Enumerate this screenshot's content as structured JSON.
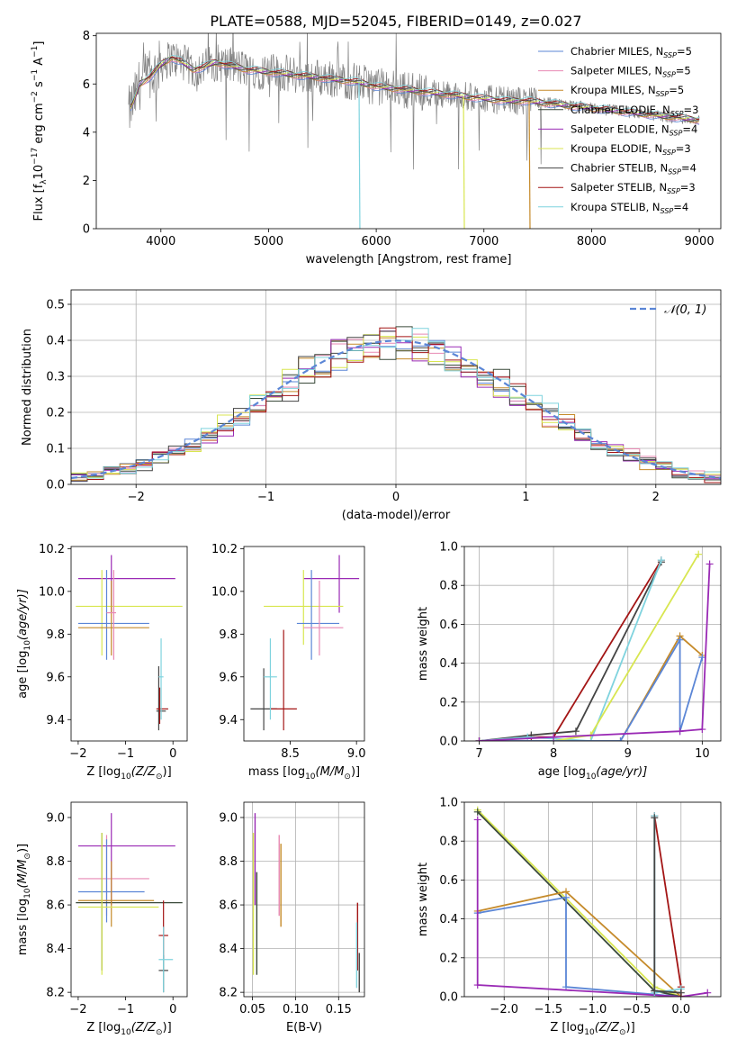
{
  "title": "PLATE=0588, MJD=52045, FIBERID=0149, z=0.027",
  "legend_models": [
    {
      "label": "Chabrier MILES, N",
      "n": "=5",
      "color": "#5b86d6"
    },
    {
      "label": "Salpeter MILES, N",
      "n": "=5",
      "color": "#e889b4"
    },
    {
      "label": "Kroupa MILES, N",
      "n": "=5",
      "color": "#c58a2a"
    },
    {
      "label": "Chabrier ELODIE, N",
      "n": "=3",
      "color": "#3a4a3a"
    },
    {
      "label": "Salpeter ELODIE, N",
      "n": "=4",
      "color": "#9a2ab5"
    },
    {
      "label": "Kroupa ELODIE, N",
      "n": "=3",
      "color": "#d8e650"
    },
    {
      "label": "Chabrier STELIB, N",
      "n": "=4",
      "color": "#444444"
    },
    {
      "label": "Salpeter STELIB, N",
      "n": "=3",
      "color": "#a31515"
    },
    {
      "label": "Kroupa STELIB, N",
      "n": "=4",
      "color": "#7fd3de"
    }
  ],
  "legend_sub": "SSP",
  "chart_data": [
    {
      "id": "spectrum",
      "type": "line",
      "xlabel": "wavelength [Angstrom, rest frame]",
      "ylabel": "Flux [f",
      "ylabel_sub": "λ",
      "ylabel_rest": "10",
      "ylabel_exp1": "−17",
      "ylabel_unit": " erg cm",
      "ylabel_exp2": "−2",
      "ylabel_s": " s",
      "ylabel_exp3": "−1",
      "ylabel_A": " A",
      "ylabel_exp4": "−1",
      "ylabel_end": "]",
      "xlim": [
        3400,
        9200
      ],
      "ylim": [
        0,
        8.1
      ],
      "xticks": [
        4000,
        5000,
        6000,
        7000,
        8000,
        9000
      ],
      "yticks": [
        0,
        2,
        4,
        6,
        8
      ],
      "continuum": {
        "x": [
          3700,
          3750,
          3800,
          3900,
          4000,
          4100,
          4200,
          4300,
          4400,
          4500,
          4600,
          4800,
          5000,
          5200,
          5400,
          5600,
          5800,
          6000,
          6200,
          6400,
          6600,
          6800,
          7000,
          7200,
          7400,
          7600,
          7800,
          8000,
          8200,
          8400,
          8600,
          8800,
          9000
        ],
        "y": [
          4.8,
          5.3,
          6.0,
          6.3,
          6.8,
          7.1,
          6.9,
          6.6,
          6.7,
          6.9,
          6.8,
          6.6,
          6.5,
          6.4,
          6.3,
          6.2,
          6.1,
          5.9,
          5.8,
          5.7,
          5.6,
          5.5,
          5.4,
          5.3,
          5.3,
          5.2,
          5.1,
          5.0,
          4.9,
          4.8,
          4.7,
          4.6,
          4.5
        ]
      },
      "cutoffs": [
        {
          "x": 5840,
          "color": "#7fd3de"
        },
        {
          "x": 6810,
          "color": "#d8e650"
        },
        {
          "x": 7420,
          "color": "#c58a2a"
        }
      ]
    },
    {
      "id": "residuals",
      "type": "line",
      "xlabel": "(data-model)/error",
      "ylabel": "Normed distribution",
      "xlim": [
        -2.5,
        2.5
      ],
      "ylim": [
        0,
        0.54
      ],
      "xticks": [
        -2,
        -1,
        0,
        1,
        2
      ],
      "yticks": [
        0.0,
        0.1,
        0.2,
        0.3,
        0.4,
        0.5
      ],
      "legend": "𝒩(0, 1)",
      "grid": true
    },
    {
      "id": "age-vs-Z",
      "type": "scatter",
      "xlabel": "Z [log",
      "xlabel_sub": "10",
      "xlabel_rest": "(Z/Z",
      "xlabel_sun": "⊙",
      "xlabel_end": ")]",
      "ylabel": "age  [log",
      "ylabel_sub": "10",
      "ylabel_rest": "(age/yr)]",
      "xlim": [
        -2.15,
        0.3
      ],
      "ylim": [
        9.3,
        10.21
      ],
      "xticks": [
        -2,
        -1,
        0
      ],
      "yticks": [
        9.4,
        9.6,
        9.8,
        10.0,
        10.2
      ],
      "points": [
        {
          "x": -1.3,
          "y": 10.06,
          "xe": [
            -2.0,
            0.05
          ],
          "ye": [
            9.9,
            10.17
          ],
          "c": "#9a2ab5"
        },
        {
          "x": -1.5,
          "y": 9.93,
          "xe": [
            -2.05,
            0.2
          ],
          "ye": [
            9.7,
            10.1
          ],
          "c": "#d8e650"
        },
        {
          "x": -1.4,
          "y": 9.85,
          "xe": [
            -2.0,
            -0.5
          ],
          "ye": [
            9.68,
            10.1
          ],
          "c": "#5b86d6"
        },
        {
          "x": -1.3,
          "y": 9.83,
          "xe": [
            -2.0,
            -0.5
          ],
          "ye": [
            9.7,
            10.05
          ],
          "c": "#c58a2a"
        },
        {
          "x": -1.25,
          "y": 9.9,
          "xe": [
            -1.4,
            -1.2
          ],
          "ye": [
            9.68,
            10.1
          ],
          "c": "#e889b4"
        },
        {
          "x": -0.3,
          "y": 9.44,
          "xe": [
            -0.35,
            -0.15
          ],
          "ye": [
            9.35,
            9.65
          ],
          "c": "#444444"
        },
        {
          "x": -0.28,
          "y": 9.45,
          "xe": [
            -0.35,
            -0.1
          ],
          "ye": [
            9.38,
            9.55
          ],
          "c": "#a31515"
        },
        {
          "x": -0.25,
          "y": 9.6,
          "xe": [
            -0.3,
            -0.2
          ],
          "ye": [
            9.4,
            9.78
          ],
          "c": "#7fd3de"
        }
      ]
    },
    {
      "id": "age-vs-mass",
      "type": "scatter",
      "xlabel": "mass [log",
      "xlabel_sub": "10",
      "xlabel_rest": "(M/M",
      "xlabel_sun": "⊙",
      "xlabel_end": ")]",
      "xlim": [
        8.15,
        9.06
      ],
      "ylim": [
        9.3,
        10.21
      ],
      "xticks": [
        8.5,
        9.0
      ],
      "yticks": [
        9.4,
        9.6,
        9.8,
        10.0,
        10.2
      ],
      "points": [
        {
          "x": 8.87,
          "y": 10.06,
          "xe": [
            8.6,
            9.02
          ],
          "ye": [
            9.9,
            10.17
          ],
          "c": "#9a2ab5"
        },
        {
          "x": 8.6,
          "y": 9.93,
          "xe": [
            8.3,
            8.9
          ],
          "ye": [
            9.75,
            10.1
          ],
          "c": "#d8e650"
        },
        {
          "x": 8.66,
          "y": 9.85,
          "xe": [
            8.55,
            8.87
          ],
          "ye": [
            9.68,
            10.1
          ],
          "c": "#5b86d6"
        },
        {
          "x": 8.72,
          "y": 9.83,
          "xe": [
            8.6,
            8.9
          ],
          "ye": [
            9.7,
            10.05
          ],
          "c": "#e889b4"
        },
        {
          "x": 8.3,
          "y": 9.45,
          "xe": [
            8.2,
            8.4
          ],
          "ye": [
            9.35,
            9.64
          ],
          "c": "#444444"
        },
        {
          "x": 8.45,
          "y": 9.45,
          "xe": [
            8.35,
            8.55
          ],
          "ye": [
            9.35,
            9.82
          ],
          "c": "#a31515"
        },
        {
          "x": 8.35,
          "y": 9.6,
          "xe": [
            8.3,
            8.4
          ],
          "ye": [
            9.4,
            9.78
          ],
          "c": "#7fd3de"
        }
      ]
    },
    {
      "id": "weight-vs-age",
      "type": "line",
      "xlabel": "age  [log",
      "xlabel_sub": "10",
      "xlabel_rest": "(age/yr)]",
      "ylabel": "mass weight",
      "xlim": [
        6.8,
        10.25
      ],
      "ylim": [
        0,
        1.0
      ],
      "xticks": [
        7,
        8,
        9,
        10
      ],
      "yticks": [
        0.0,
        0.2,
        0.4,
        0.6,
        0.8,
        1.0
      ],
      "grid": true,
      "series": [
        {
          "c": "#a31515",
          "x": [
            7.0,
            7.7,
            8.0,
            9.45
          ],
          "y": [
            0.0,
            0.02,
            0.02,
            0.93
          ]
        },
        {
          "c": "#444444",
          "x": [
            7.0,
            7.7,
            8.3,
            9.45
          ],
          "y": [
            0.0,
            0.03,
            0.05,
            0.92
          ]
        },
        {
          "c": "#7fd3de",
          "x": [
            7.0,
            7.65,
            8.5,
            9.45
          ],
          "y": [
            0.0,
            0.02,
            0.0,
            0.93
          ]
        },
        {
          "c": "#d8e650",
          "x": [
            7.0,
            8.0,
            8.5,
            9.95
          ],
          "y": [
            0.0,
            0.0,
            0.03,
            0.96
          ]
        },
        {
          "c": "#c58a2a",
          "x": [
            7.0,
            8.9,
            9.7,
            10.0
          ],
          "y": [
            0.0,
            0.0,
            0.54,
            0.44
          ]
        },
        {
          "c": "#5b86d6",
          "x": [
            7.0,
            8.9,
            9.7,
            9.7,
            10.0
          ],
          "y": [
            0.0,
            0.0,
            0.52,
            0.05,
            0.43
          ]
        },
        {
          "c": "#9a2ab5",
          "x": [
            7.0,
            8.0,
            9.7,
            10.0,
            10.1
          ],
          "y": [
            0.0,
            0.02,
            0.05,
            0.06,
            0.91
          ]
        }
      ]
    },
    {
      "id": "mass-vs-Z",
      "type": "scatter",
      "xlabel": "Z [log",
      "xlabel_sub": "10",
      "xlabel_rest": "(Z/Z",
      "xlabel_sun": "⊙",
      "xlabel_end": ")]",
      "ylabel": "mass [log",
      "ylabel_sub": "10",
      "ylabel_rest": "(M/M",
      "ylabel_sun": "⊙",
      "ylabel_end": ")]",
      "xlim": [
        -2.15,
        0.3
      ],
      "ylim": [
        8.18,
        9.07
      ],
      "xticks": [
        -2,
        -1,
        0
      ],
      "yticks": [
        8.2,
        8.4,
        8.6,
        8.8,
        9.0
      ],
      "points": [
        {
          "x": -1.3,
          "y": 8.87,
          "xe": [
            -2.0,
            0.05
          ],
          "ye": [
            8.6,
            9.02
          ],
          "c": "#9a2ab5"
        },
        {
          "x": -1.4,
          "y": 8.72,
          "xe": [
            -2.0,
            -0.5
          ],
          "ye": [
            8.55,
            8.92
          ],
          "c": "#e889b4"
        },
        {
          "x": -1.4,
          "y": 8.66,
          "xe": [
            -2.0,
            -0.6
          ],
          "ye": [
            8.52,
            8.9
          ],
          "c": "#5b86d6"
        },
        {
          "x": -1.5,
          "y": 8.61,
          "xe": [
            -2.05,
            0.2
          ],
          "ye": [
            8.3,
            8.93
          ],
          "c": "#3a4a3a"
        },
        {
          "x": -1.3,
          "y": 8.62,
          "xe": [
            -2.0,
            -0.4
          ],
          "ye": [
            8.5,
            8.8
          ],
          "c": "#c58a2a"
        },
        {
          "x": -1.5,
          "y": 8.59,
          "xe": [
            -2.0,
            -0.3
          ],
          "ye": [
            8.28,
            8.93
          ],
          "c": "#d8e650"
        },
        {
          "x": -0.2,
          "y": 8.46,
          "xe": [
            -0.3,
            -0.1
          ],
          "ye": [
            8.35,
            8.62
          ],
          "c": "#a31515"
        },
        {
          "x": -0.2,
          "y": 8.3,
          "xe": [
            -0.3,
            -0.1
          ],
          "ye": [
            8.2,
            8.37
          ],
          "c": "#444444"
        },
        {
          "x": -0.2,
          "y": 8.35,
          "xe": [
            -0.3,
            0.0
          ],
          "ye": [
            8.2,
            8.5
          ],
          "c": "#7fd3de"
        }
      ]
    },
    {
      "id": "mass-vs-ebv",
      "type": "scatter",
      "xlabel": "E(B-V)",
      "xlim": [
        0.04,
        0.18
      ],
      "ylim": [
        8.18,
        9.07
      ],
      "xticks": [
        0.05,
        0.1,
        0.15
      ],
      "yticks": [
        8.2,
        8.4,
        8.6,
        8.8,
        9.0
      ],
      "grid": true,
      "bars": [
        {
          "x": 0.053,
          "ye": [
            8.6,
            9.02
          ],
          "c": "#9a2ab5"
        },
        {
          "x": 0.051,
          "ye": [
            8.28,
            8.93
          ],
          "c": "#d8e650"
        },
        {
          "x": 0.055,
          "ye": [
            8.28,
            8.75
          ],
          "c": "#3a4a3a"
        },
        {
          "x": 0.081,
          "ye": [
            8.55,
            8.92
          ],
          "c": "#e889b4"
        },
        {
          "x": 0.083,
          "ye": [
            8.5,
            8.88
          ],
          "c": "#c58a2a"
        },
        {
          "x": 0.172,
          "ye": [
            8.3,
            8.61
          ],
          "c": "#a31515"
        },
        {
          "x": 0.174,
          "ye": [
            8.2,
            8.38
          ],
          "c": "#444444"
        },
        {
          "x": 0.171,
          "ye": [
            8.22,
            8.52
          ],
          "c": "#7fd3de"
        }
      ]
    },
    {
      "id": "weight-vs-Z",
      "type": "line",
      "xlabel": "Z [log",
      "xlabel_sub": "10",
      "xlabel_rest": "(Z/Z",
      "xlabel_sun": "⊙",
      "xlabel_end": ")]",
      "ylabel": "mass weight",
      "xlim": [
        -2.45,
        0.45
      ],
      "ylim": [
        0,
        1.0
      ],
      "xticks": [
        -2.0,
        -1.5,
        -1.0,
        -0.5,
        0.0
      ],
      "yticks": [
        0.0,
        0.2,
        0.4,
        0.6,
        0.8,
        1.0
      ],
      "grid": true,
      "series": [
        {
          "c": "#d8e650",
          "x": [
            -2.3,
            -0.3,
            0.0
          ],
          "y": [
            0.96,
            0.05,
            0.0
          ]
        },
        {
          "c": "#3a4a3a",
          "x": [
            -2.3,
            -0.3,
            0.0
          ],
          "y": [
            0.95,
            0.03,
            0.0
          ]
        },
        {
          "c": "#c58a2a",
          "x": [
            -2.3,
            -1.3,
            0.0
          ],
          "y": [
            0.44,
            0.54,
            0.0
          ]
        },
        {
          "c": "#5b86d6",
          "x": [
            -2.3,
            -1.3,
            -1.3,
            0.0
          ],
          "y": [
            0.43,
            0.51,
            0.05,
            0.0
          ]
        },
        {
          "c": "#9a2ab5",
          "x": [
            -2.3,
            -2.3,
            0.0,
            0.3
          ],
          "y": [
            0.91,
            0.06,
            0.0,
            0.02
          ]
        },
        {
          "c": "#a31515",
          "x": [
            -0.3,
            0.0,
            0.0
          ],
          "y": [
            0.93,
            0.05,
            0.0
          ]
        },
        {
          "c": "#7fd3de",
          "x": [
            -0.3,
            -0.3,
            0.0
          ],
          "y": [
            0.93,
            0.02,
            0.04
          ]
        },
        {
          "c": "#444444",
          "x": [
            -0.3,
            -0.3,
            0.0
          ],
          "y": [
            0.92,
            0.03,
            0.02
          ]
        }
      ]
    }
  ]
}
